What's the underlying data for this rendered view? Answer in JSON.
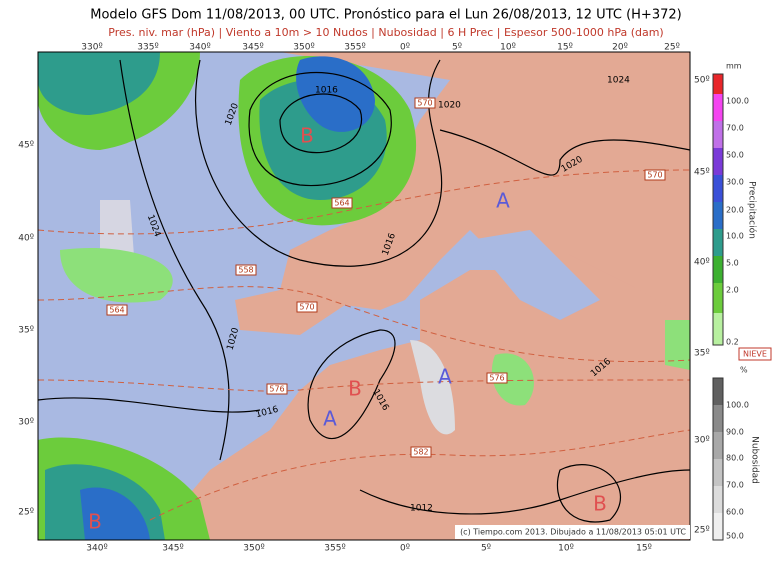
{
  "header": {
    "title": "Modelo GFS Dom 11/08/2013, 00 UTC. Pronóstico para el Lun 26/08/2013, 12 UTC (H+372)",
    "subtitle": "Pres. niv. mar (hPa) | Viento a 10m > 10 Nudos | Nubosidad | 6 H Prec | Espesor 500-1000 hPa (dam)"
  },
  "map": {
    "top_longitudes": [
      "330º",
      "335º",
      "340º",
      "345º",
      "350º",
      "355º",
      "0º",
      "5º",
      "10º",
      "15º",
      "20º",
      "25º"
    ],
    "bottom_longitudes": [
      "340º",
      "345º",
      "350º",
      "355º",
      "0º",
      "5º",
      "10º",
      "15º"
    ],
    "left_latitudes": [
      "45º",
      "40º",
      "35º",
      "30º",
      "25º"
    ],
    "right_latitudes": [
      "50º",
      "45º",
      "40º",
      "35º",
      "30º",
      "25º"
    ],
    "isobar_labels": [
      "1016",
      "1020",
      "1024",
      "1020",
      "1024",
      "1020",
      "1016",
      "1020",
      "1016",
      "1016",
      "1016",
      "1012"
    ],
    "thickness_labels": [
      "570",
      "564",
      "558",
      "564",
      "570",
      "576",
      "576",
      "582",
      "570"
    ],
    "centers": [
      "B",
      "A",
      "B",
      "A",
      "A",
      "B",
      "B"
    ],
    "credit": "(c) Tiempo.com 2013. Dibujado a 11/08/2013 05:01 UTC"
  },
  "precipitation_legend": {
    "unit": "mm",
    "title": "Precipitación",
    "labels": [
      "100.0",
      "70.0",
      "50.0",
      "30.0",
      "20.0",
      "10.0",
      "5.0",
      "2.0",
      "0.2"
    ]
  },
  "cloud_legend": {
    "snow": "NIEVE",
    "unit": "%",
    "title": "Nubosidad",
    "labels": [
      "100.0",
      "90.0",
      "80.0",
      "70.0",
      "60.0",
      "50.0"
    ]
  }
}
